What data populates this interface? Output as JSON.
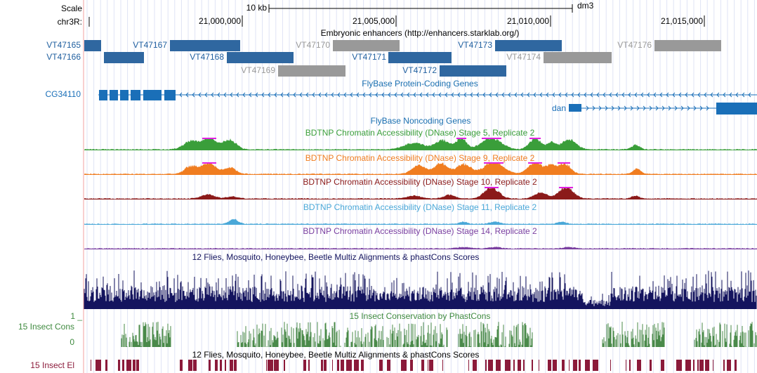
{
  "ruler": {
    "scale_label": "Scale",
    "chrom_label": "chr3R:",
    "scale_bar": "10 kb",
    "assembly": "dm3",
    "positions": [
      "21,000,000",
      "21,005,000",
      "21,010,000",
      "21,015,000"
    ]
  },
  "enhancers": {
    "title": "Embryonic enhancers (http://enhancers.starklab.org/)",
    "items": [
      "VT47165",
      "VT47166",
      "VT47167",
      "VT47168",
      "VT47169",
      "VT47170",
      "VT47171",
      "VT47172",
      "VT47173",
      "VT47174",
      "VT47176"
    ]
  },
  "coding_genes": {
    "title": "FlyBase Protein-Coding Genes",
    "items": [
      "CG34110",
      "dan"
    ]
  },
  "noncoding_genes": {
    "title": "FlyBase Noncoding Genes"
  },
  "dnase": [
    {
      "title": "BDTNP Chromatin Accessibility (DNase) Stage 5, Replicate 2"
    },
    {
      "title": "BDTNP Chromatin Accessibility (DNase) Stage 9, Replicate 2"
    },
    {
      "title": "BDTNP Chromatin Accessibility (DNase) Stage 10, Replicate 2"
    },
    {
      "title": "BDTNP Chromatin Accessibility (DNase) Stage 11, Replicate 2"
    },
    {
      "title": "BDTNP Chromatin Accessibility (DNase) Stage 14, Replicate 2"
    }
  ],
  "multiz": {
    "title": "12 Flies, Mosquito, Honeybee, Beetle Multiz Alignments & phastCons Scores"
  },
  "cons": {
    "title": "15 Insect Conservation by PhastCons",
    "label": "15 Insect Cons",
    "top": "1 _",
    "bottom": "0"
  },
  "elements": {
    "title": "12 Flies, Mosquito, Honeybee, Beetle Multiz Alignments & phastCons Scores",
    "label": "15 Insect El"
  }
}
